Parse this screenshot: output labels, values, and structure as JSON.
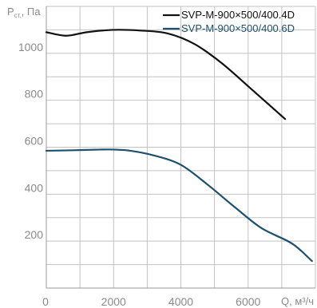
{
  "chart_data": {
    "type": "line",
    "ylabel": "P",
    "ylabel_sub": "ст.",
    "ylabel_unit": ", Па",
    "xlabel": "Q, м³/ч",
    "xlim": [
      0,
      8000
    ],
    "ylim": [
      0,
      1200
    ],
    "x_ticks": [
      "0",
      "2000",
      "4000",
      "6000"
    ],
    "y_ticks": [
      "200",
      "400",
      "600",
      "800",
      "1000"
    ],
    "x_tick_values": [
      0,
      2000,
      4000,
      6000
    ],
    "y_tick_values": [
      200,
      400,
      600,
      800,
      1000
    ],
    "grid": true,
    "legend_position": "top-right",
    "series": [
      {
        "name": "SVP-M-900×500/400.4D",
        "color": "#111111",
        "x": [
          0,
          600,
          1200,
          2000,
          2800,
          3600,
          4400,
          5200,
          6000,
          7100
        ],
        "y": [
          1090,
          1075,
          1090,
          1100,
          1097,
          1085,
          1040,
          960,
          860,
          720
        ]
      },
      {
        "name": "SVP-M-900×500/400.6D",
        "color": "#1d4f6e",
        "x": [
          0,
          800,
          1600,
          2000,
          2500,
          3200,
          4000,
          4800,
          5600,
          6400,
          7300,
          7900
        ],
        "y": [
          585,
          587,
          590,
          590,
          585,
          565,
          525,
          440,
          345,
          255,
          190,
          115
        ]
      }
    ]
  }
}
